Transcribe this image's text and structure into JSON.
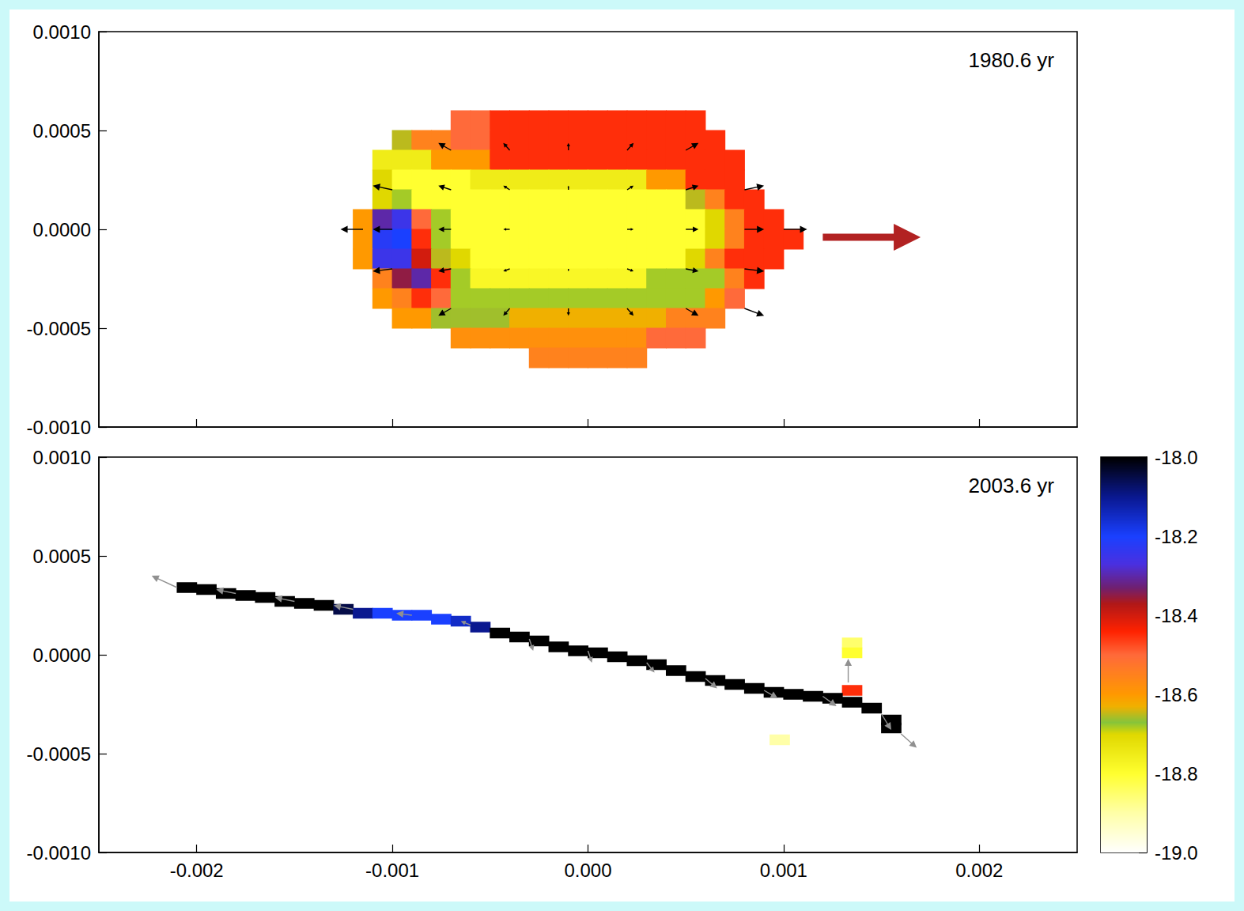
{
  "chart_data": [
    {
      "type": "heatmap",
      "title": "1980.6 yr",
      "xlim": [
        -0.0025,
        0.0025
      ],
      "xticks": [
        -0.002,
        -0.001,
        {
          "value": 0,
          "label": "0.000"
        },
        0.001,
        0.002
      ],
      "ylim": [
        -0.001,
        0.001
      ],
      "yticks": [
        {
          "value": -0.001,
          "label": "-0.0010"
        },
        -0.0005,
        {
          "value": 0,
          "label": "0.0000"
        },
        0.0005,
        {
          "value": 0.001,
          "label": "0.0010"
        }
      ],
      "tick_labels": "y",
      "cells": {
        "x": [
          -0.00115,
          -0.00105,
          -0.00095,
          -0.00085,
          -0.00075,
          -0.00065,
          -0.00055,
          -0.00045,
          -0.00035,
          -0.00025,
          -0.00015,
          -5e-05,
          5e-05,
          0.00015,
          0.00025,
          0.00035,
          0.00045,
          0.00055,
          0.00065,
          0.00075,
          0.00085,
          0.00095,
          0.00105
        ],
        "y": [
          0.00055,
          0.00045,
          0.00035,
          0.00025,
          0.00015,
          5e-05,
          -5e-05,
          -0.00015,
          -0.00025,
          -0.00035,
          -0.00045,
          -0.00055,
          -0.00065
        ],
        "z": [
          [
            null,
            null,
            null,
            null,
            null,
            -18.5,
            -18.5,
            -18.45,
            -18.45,
            -18.45,
            -18.45,
            -18.45,
            -18.45,
            -18.45,
            -18.45,
            -18.45,
            -18.45,
            -18.45,
            null,
            null,
            null,
            null,
            null
          ],
          [
            null,
            null,
            -18.65,
            -18.55,
            -18.55,
            -18.5,
            -18.5,
            -18.45,
            -18.45,
            -18.45,
            -18.45,
            -18.45,
            -18.45,
            -18.45,
            -18.45,
            -18.45,
            -18.45,
            -18.45,
            -18.45,
            null,
            null,
            null,
            null
          ],
          [
            null,
            -18.75,
            -18.75,
            -18.75,
            -18.6,
            -18.6,
            -18.6,
            -18.45,
            -18.45,
            -18.45,
            -18.45,
            -18.45,
            -18.45,
            -18.45,
            -18.45,
            -18.45,
            -18.45,
            -18.45,
            -18.45,
            -18.45,
            null,
            null,
            null
          ],
          [
            null,
            -18.7,
            -18.8,
            -18.8,
            -18.8,
            -18.8,
            -18.75,
            -18.75,
            -18.75,
            -18.75,
            -18.75,
            -18.75,
            -18.75,
            -18.75,
            -18.75,
            -18.6,
            -18.6,
            -18.45,
            -18.45,
            -18.45,
            null,
            null,
            null
          ],
          [
            null,
            -18.7,
            -18.68,
            -18.8,
            -18.8,
            -18.8,
            -18.8,
            -18.8,
            -18.8,
            -18.8,
            -18.8,
            -18.8,
            -18.8,
            -18.8,
            -18.8,
            -18.8,
            -18.8,
            -18.65,
            -18.55,
            -18.45,
            -18.45,
            null,
            null
          ],
          [
            -18.6,
            -18.3,
            -18.25,
            -18.5,
            -18.68,
            -18.8,
            -18.8,
            -18.8,
            -18.8,
            -18.8,
            -18.8,
            -18.8,
            -18.8,
            -18.8,
            -18.8,
            -18.8,
            -18.8,
            -18.8,
            -18.7,
            -18.55,
            -18.45,
            -18.45,
            null
          ],
          [
            -18.6,
            -18.22,
            -18.2,
            -18.45,
            -18.68,
            -18.8,
            -18.8,
            -18.8,
            -18.8,
            -18.8,
            -18.8,
            -18.8,
            -18.8,
            -18.8,
            -18.8,
            -18.8,
            -18.8,
            -18.8,
            -18.7,
            -18.55,
            -18.45,
            -18.45,
            -18.45
          ],
          [
            -18.6,
            -18.25,
            -18.25,
            -18.4,
            -18.65,
            -18.7,
            -18.8,
            -18.8,
            -18.8,
            -18.8,
            -18.8,
            -18.8,
            -18.8,
            -18.8,
            -18.8,
            -18.8,
            -18.8,
            -18.7,
            -18.55,
            -18.45,
            -18.45,
            -18.45,
            null
          ],
          [
            null,
            -18.55,
            -18.35,
            -18.3,
            -18.45,
            -18.68,
            -18.78,
            -18.78,
            -18.78,
            -18.78,
            -18.78,
            -18.78,
            -18.78,
            -18.78,
            -18.78,
            -18.68,
            -18.68,
            -18.68,
            -18.68,
            -18.55,
            -18.45,
            null,
            null
          ],
          [
            null,
            -18.6,
            -18.55,
            -18.45,
            -18.5,
            -18.68,
            -18.68,
            -18.68,
            -18.68,
            -18.68,
            -18.68,
            -18.68,
            -18.68,
            -18.68,
            -18.68,
            -18.68,
            -18.68,
            -18.68,
            -18.6,
            -18.5,
            null,
            null,
            null
          ],
          [
            null,
            null,
            -18.6,
            -18.6,
            -18.66,
            -18.66,
            -18.66,
            -18.66,
            -18.63,
            -18.63,
            -18.63,
            -18.63,
            -18.63,
            -18.63,
            -18.63,
            -18.63,
            -18.55,
            -18.55,
            -18.55,
            null,
            null,
            null,
            null
          ],
          [
            null,
            null,
            null,
            null,
            null,
            -18.58,
            -18.58,
            -18.58,
            -18.58,
            -18.58,
            -18.58,
            -18.58,
            -18.58,
            -18.58,
            -18.58,
            -18.5,
            -18.5,
            -18.5,
            null,
            null,
            null,
            null,
            null
          ],
          [
            null,
            null,
            null,
            null,
            null,
            null,
            null,
            null,
            null,
            -18.55,
            -18.55,
            -18.55,
            -18.55,
            -18.55,
            -18.55,
            null,
            null,
            null,
            null,
            null,
            null,
            null,
            null
          ]
        ]
      },
      "vectors": {
        "color": "#000000",
        "values": [
          [
            -0.0007,
            0.0004,
            -6.5e-05,
            3.7e-05
          ],
          [
            -0.0004,
            0.0004,
            -3.3e-05,
            3.7e-05
          ],
          [
            -0.0001,
            0.0004,
            0,
            3.7e-05
          ],
          [
            0.0002,
            0.0004,
            3.3e-05,
            3.7e-05
          ],
          [
            0.0005,
            0.0004,
            6.5e-05,
            3.7e-05
          ],
          [
            -0.001,
            0.0002,
            -0.0001,
            2.1e-05
          ],
          [
            -0.0007,
            0.0002,
            -6.5e-05,
            2.1e-05
          ],
          [
            -0.0004,
            0.0002,
            -3.3e-05,
            2.1e-05
          ],
          [
            -0.0001,
            0.0002,
            0,
            2.1e-05
          ],
          [
            0.0002,
            0.0002,
            3.3e-05,
            2.1e-05
          ],
          [
            0.0005,
            0.0002,
            6.5e-05,
            2.1e-05
          ],
          [
            0.0008,
            0.0002,
            0.0001,
            2.1e-05
          ],
          [
            -0.00115,
            0,
            -0.000115,
            0
          ],
          [
            -0.001,
            0,
            -0.0001,
            0
          ],
          [
            -0.0007,
            0,
            -6.5e-05,
            0
          ],
          [
            -0.0004,
            0,
            -3.3e-05,
            0
          ],
          [
            0.0002,
            0,
            3.3e-05,
            0
          ],
          [
            0.0005,
            0,
            6.5e-05,
            0
          ],
          [
            0.0008,
            0,
            0.0001,
            0
          ],
          [
            0.001,
            0,
            0.00012,
            0
          ],
          [
            -0.001,
            -0.0002,
            -0.0001,
            -1.2e-05
          ],
          [
            -0.0007,
            -0.0002,
            -6.5e-05,
            -1.2e-05
          ],
          [
            -0.0004,
            -0.0002,
            -3.3e-05,
            -1.2e-05
          ],
          [
            -0.0001,
            -0.0002,
            0,
            -1.2e-05
          ],
          [
            0.0002,
            -0.0002,
            3.3e-05,
            -1.2e-05
          ],
          [
            0.0005,
            -0.0002,
            6.5e-05,
            -1.2e-05
          ],
          [
            0.0008,
            -0.0002,
            0.0001,
            -1.2e-05
          ],
          [
            -0.0007,
            -0.0004,
            -6.5e-05,
            -3.7e-05
          ],
          [
            -0.0004,
            -0.0004,
            -3.3e-05,
            -3.7e-05
          ],
          [
            -0.0001,
            -0.0004,
            0,
            -3.7e-05
          ],
          [
            0.0002,
            -0.0004,
            3.3e-05,
            -3.7e-05
          ],
          [
            0.0005,
            -0.0004,
            6.5e-05,
            -3.7e-05
          ],
          [
            0.0008,
            -0.0004,
            0.0001,
            -3.7e-05
          ]
        ]
      }
    },
    {
      "type": "heatmap",
      "title": "2003.6 yr",
      "xlim": [
        -0.0025,
        0.0025
      ],
      "xticks": [
        -0.002,
        -0.001,
        {
          "value": 0,
          "label": "0.000"
        },
        0.001,
        0.002
      ],
      "ylim": [
        -0.001,
        0.001
      ],
      "yticks": [
        {
          "value": -0.001,
          "label": "-0.0010"
        },
        -0.0005,
        {
          "value": 0,
          "label": "0.0000"
        },
        0.0005,
        {
          "value": 0.001,
          "label": "0.0010"
        }
      ],
      "cells": {
        "dx": 0.0001,
        "dy": 5e-05,
        "points": [
          [
            0.00135,
            6e-05,
            -18.85
          ],
          [
            0.00135,
            1e-05,
            -18.8
          ],
          [
            0.00098,
            -0.00043,
            -18.9
          ],
          [
            0.00135,
            -0.00018,
            -18.45
          ],
          [
            -0.00205,
            0.00034,
            -18.0
          ],
          [
            -0.00195,
            0.00033,
            -18.0
          ],
          [
            -0.00185,
            0.00031,
            -18.0
          ],
          [
            -0.00175,
            0.0003,
            -18.0
          ],
          [
            -0.00165,
            0.00029,
            -18.0
          ],
          [
            -0.00155,
            0.00027,
            -18.0
          ],
          [
            -0.00145,
            0.00026,
            -18.0
          ],
          [
            -0.00135,
            0.00025,
            -18.0
          ],
          [
            -0.00125,
            0.00023,
            -18.05
          ],
          [
            -0.00115,
            0.00021,
            -18.1
          ],
          [
            -0.00105,
            0.00021,
            -18.2
          ],
          [
            -0.00095,
            0.0002,
            -18.2
          ],
          [
            -0.00085,
            0.0002,
            -18.2
          ],
          [
            -0.00075,
            0.00018,
            -18.2
          ],
          [
            -0.00065,
            0.00017,
            -18.15
          ],
          [
            -0.00055,
            0.00014,
            -18.1
          ],
          [
            -0.00045,
            0.00011,
            -18.0
          ],
          [
            -0.00035,
            9e-05,
            -18.0
          ],
          [
            -0.00025,
            7e-05,
            -18.0
          ],
          [
            -0.00015,
            4e-05,
            -18.0
          ],
          [
            -5e-05,
            2e-05,
            -18.0
          ],
          [
            5e-05,
            1e-05,
            -18.0
          ],
          [
            0.00015,
            -1e-05,
            -18.0
          ],
          [
            0.00025,
            -3e-05,
            -18.0
          ],
          [
            0.00035,
            -5e-05,
            -18.0
          ],
          [
            0.00045,
            -8e-05,
            -18.0
          ],
          [
            0.00055,
            -0.00011,
            -18.0
          ],
          [
            0.00065,
            -0.00013,
            -18.0
          ],
          [
            0.00075,
            -0.00015,
            -18.0
          ],
          [
            0.00085,
            -0.00017,
            -18.0
          ],
          [
            0.00095,
            -0.00019,
            -18.0
          ],
          [
            0.00105,
            -0.0002,
            -18.0
          ],
          [
            0.00115,
            -0.00021,
            -18.0
          ],
          [
            0.00125,
            -0.00022,
            -18.0
          ],
          [
            0.00135,
            -0.00024,
            -18.0
          ],
          [
            0.00145,
            -0.00027,
            -18.0
          ],
          [
            0.00155,
            -0.00033,
            -18.0
          ],
          [
            0.00155,
            -0.00037,
            -18.0
          ]
        ]
      },
      "vectors": {
        "color": "#909090",
        "values": [
          [
            -0.0021,
            0.00034,
            -0.00013,
            6e-05
          ],
          [
            -0.0018,
            0.00031,
            -0.0001,
            2e-05
          ],
          [
            -0.0015,
            0.00027,
            -0.0001,
            2e-05
          ],
          [
            -0.0012,
            0.00023,
            -0.0001,
            2e-05
          ],
          [
            -0.0009,
            0.0002,
            -8e-05,
            1e-05
          ],
          [
            -0.0006,
            0.00015,
            -5e-05,
            2e-05
          ],
          [
            -0.0003,
            8e-05,
            2e-05,
            -6e-05
          ],
          [
            0,
            2e-05,
            2e-05,
            -6e-05
          ],
          [
            0.0003,
            -4e-05,
            4e-05,
            -5e-05
          ],
          [
            0.0006,
            -0.00012,
            6e-05,
            -5e-05
          ],
          [
            0.0009,
            -0.00018,
            7e-05,
            -4e-05
          ],
          [
            0.0012,
            -0.00021,
            7e-05,
            -5e-05
          ],
          [
            0.00133,
            -0.00014,
            0,
            0.00012
          ],
          [
            0.0015,
            -0.0003,
            5e-05,
            -8e-05
          ],
          [
            0.0016,
            -0.0004,
            8e-05,
            -7e-05
          ]
        ]
      },
      "colorbar": {
        "lim": [
          -19.0,
          -18.0
        ],
        "ticks": [
          {
            "value": -18.0,
            "label": "-18.0"
          },
          -18.2,
          -18.4,
          -18.6,
          -18.8,
          {
            "value": -19.0,
            "label": "-19.0"
          }
        ]
      }
    }
  ]
}
